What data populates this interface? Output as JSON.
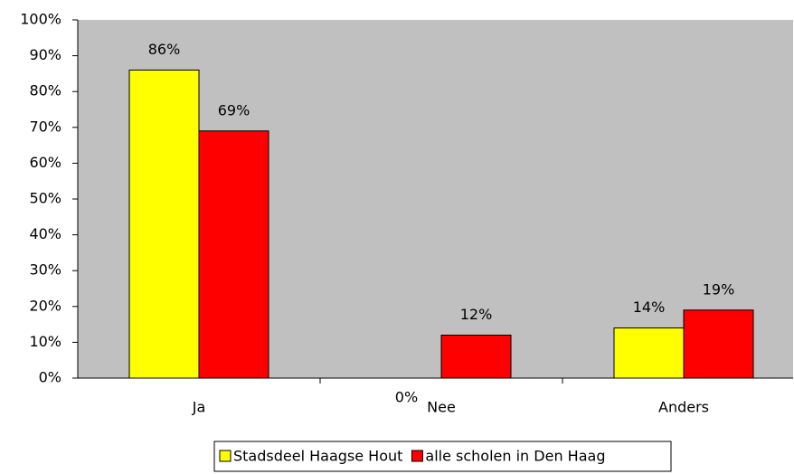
{
  "chart_data": {
    "type": "bar",
    "categories": [
      "Ja",
      "Nee",
      "Anders"
    ],
    "series": [
      {
        "name": "Stadsdeel Haagse Hout",
        "color": "#ffff00",
        "values": [
          86,
          0,
          14
        ],
        "value_labels": [
          "86%",
          "0%",
          "14%"
        ]
      },
      {
        "name": "alle scholen in Den Haag",
        "color": "#ff0000",
        "values": [
          69,
          12,
          19
        ],
        "value_labels": [
          "69%",
          "12%",
          "19%"
        ]
      }
    ],
    "ylim": [
      0,
      100
    ],
    "yticks": [
      {
        "value": 0,
        "label": "0%"
      },
      {
        "value": 10,
        "label": "10%"
      },
      {
        "value": 20,
        "label": "20%"
      },
      {
        "value": 30,
        "label": "30%"
      },
      {
        "value": 40,
        "label": "40%"
      },
      {
        "value": 50,
        "label": "50%"
      },
      {
        "value": 60,
        "label": "60%"
      },
      {
        "value": 70,
        "label": "70%"
      },
      {
        "value": 80,
        "label": "80%"
      },
      {
        "value": 90,
        "label": "90%"
      },
      {
        "value": 100,
        "label": "100%"
      }
    ],
    "legend": "bottom"
  }
}
